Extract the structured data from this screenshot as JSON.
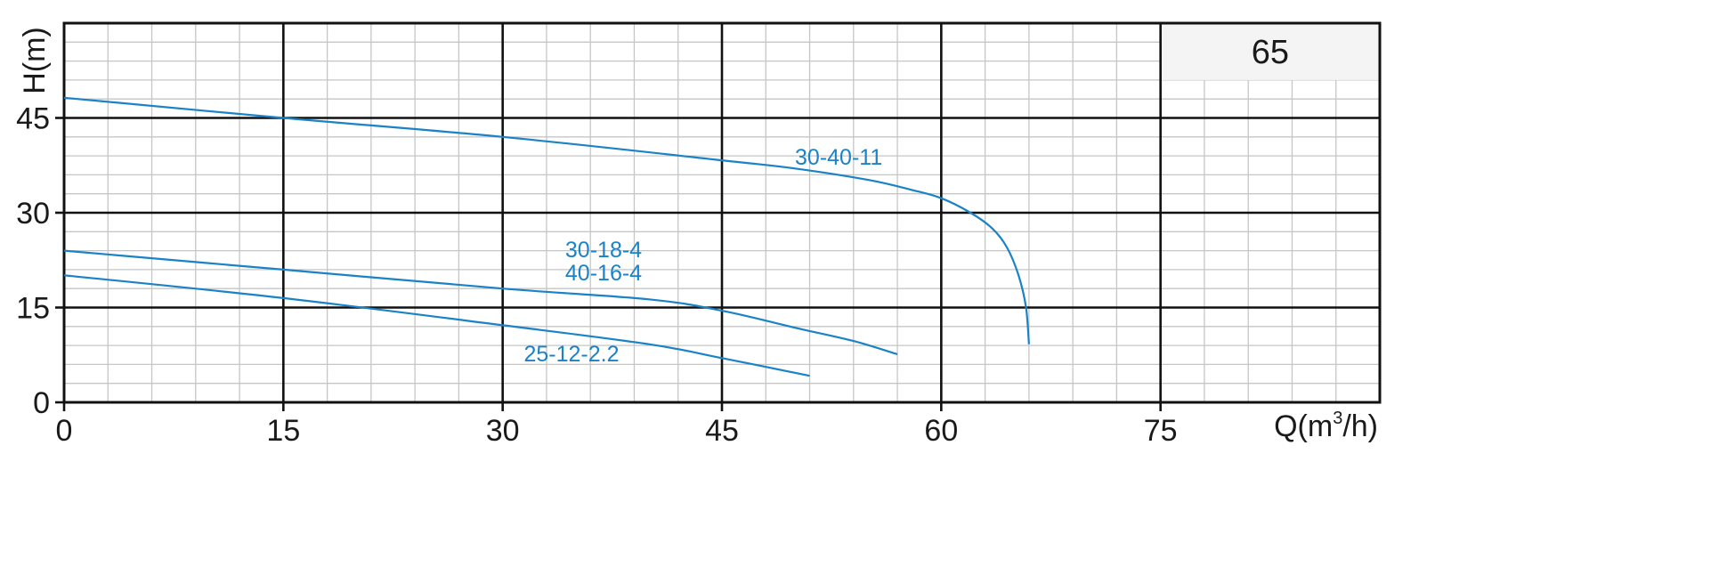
{
  "chart_data": {
    "type": "line",
    "xlabel": "Q(m³/h)",
    "xlabel_parts": {
      "prefix": "Q(m",
      "sup": "3",
      "suffix": "/h)"
    },
    "ylabel": "H(m)",
    "xlim": [
      0,
      90
    ],
    "ylim": [
      0,
      60
    ],
    "x_ticks": [
      0,
      15,
      30,
      45,
      60,
      75
    ],
    "y_ticks": [
      0,
      15,
      30,
      45
    ],
    "x_minor_step": 3,
    "y_minor_step": 3,
    "grid": true,
    "box_label": "65",
    "series_color": "#1a82c7",
    "series": [
      {
        "name": "30-40-11",
        "points": [
          [
            0,
            48.2
          ],
          [
            15,
            45
          ],
          [
            30,
            42
          ],
          [
            45,
            38.3
          ],
          [
            50,
            37
          ],
          [
            55,
            35.2
          ],
          [
            58,
            33.6
          ],
          [
            60,
            32.3
          ],
          [
            62,
            30
          ],
          [
            63.5,
            27.5
          ],
          [
            64.5,
            24.5
          ],
          [
            65.3,
            20
          ],
          [
            65.8,
            15
          ],
          [
            66,
            9.2
          ]
        ]
      },
      {
        "name": "30-18-4 / 40-16-4",
        "label_lines": [
          "30-18-4",
          "40-16-4"
        ],
        "points": [
          [
            0,
            24
          ],
          [
            15,
            21
          ],
          [
            30,
            18
          ],
          [
            40,
            16.3
          ],
          [
            45,
            14.5
          ],
          [
            50,
            11.8
          ],
          [
            54,
            9.7
          ],
          [
            57,
            7.6
          ]
        ]
      },
      {
        "name": "25-12-2.2",
        "points": [
          [
            0,
            20.1
          ],
          [
            15,
            16.5
          ],
          [
            30,
            12.2
          ],
          [
            40,
            9.2
          ],
          [
            45,
            7
          ],
          [
            51,
            4.2
          ]
        ]
      }
    ]
  }
}
